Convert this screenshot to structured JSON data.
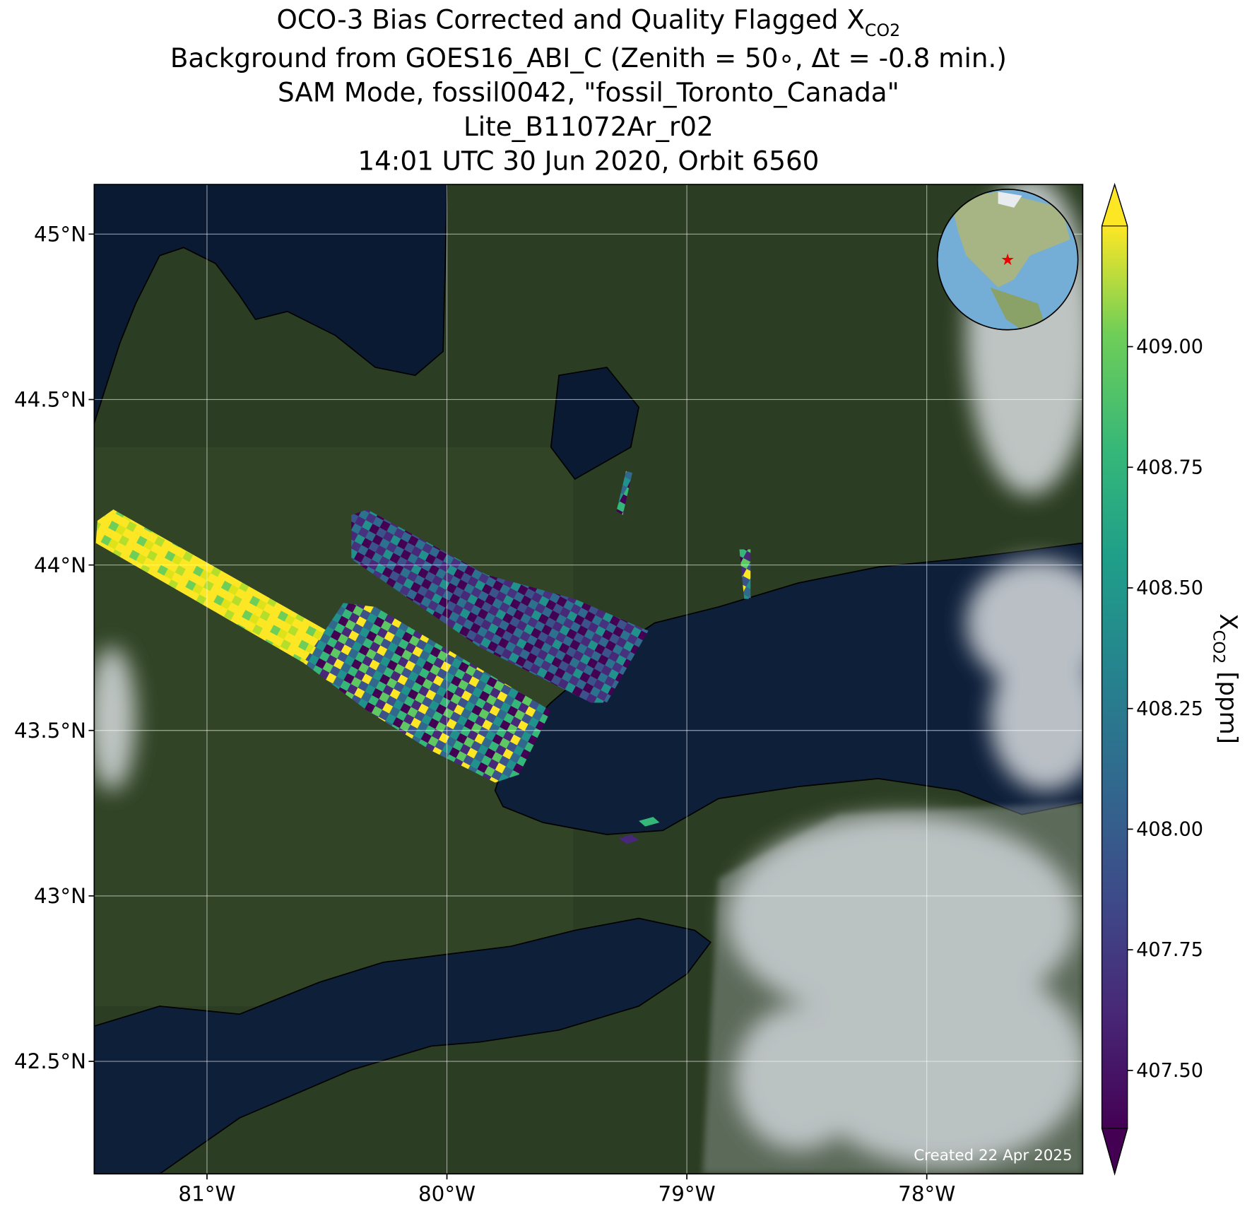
{
  "chart_data": {
    "type": "map",
    "title": {
      "main": "OCO-3 Bias Corrected and Quality Flagged X",
      "sub": "CO2"
    },
    "subtitle_lines": [
      "Background from GOES16_ABI_C (Zenith = 50∘, Δt = -0.8 min.)",
      "SAM Mode, fossil0042, \"fossil_Toronto_Canada\"",
      "Lite_B11072Ar_r02",
      "14:01 UTC 30 Jun 2020, Orbit 6560"
    ],
    "xlim": [
      -81.47,
      -77.35
    ],
    "xticks": [
      {
        "value": -81,
        "label": "81°W"
      },
      {
        "value": -80,
        "label": "80°W"
      },
      {
        "value": -79,
        "label": "79°W"
      },
      {
        "value": -78,
        "label": "78°W"
      }
    ],
    "ylim": [
      42.16,
      45.15
    ],
    "yticks": [
      {
        "value": 42.5,
        "label": "42.5°N"
      },
      {
        "value": 43,
        "label": "43°N"
      },
      {
        "value": 43.5,
        "label": "43.5°N"
      },
      {
        "value": 44,
        "label": "44°N"
      },
      {
        "value": 44.5,
        "label": "44.5°N"
      },
      {
        "value": 45,
        "label": "45°N"
      }
    ],
    "grid": true,
    "colormap": "viridis",
    "clim": [
      407.38,
      409.25
    ],
    "cticks": [
      {
        "value": 407.5,
        "label": "407.50"
      },
      {
        "value": 407.75,
        "label": "407.75"
      },
      {
        "value": 408,
        "label": "408.00"
      },
      {
        "value": 408.25,
        "label": "408.25"
      },
      {
        "value": 408.5,
        "label": "408.50"
      },
      {
        "value": 408.75,
        "label": "408.75"
      },
      {
        "value": 409,
        "label": "409.00"
      }
    ],
    "colorbar_label": {
      "main": "X",
      "sub": "CO2",
      "unit": " [ppm]"
    },
    "annotation": "Created 22 Apr 2025"
  }
}
